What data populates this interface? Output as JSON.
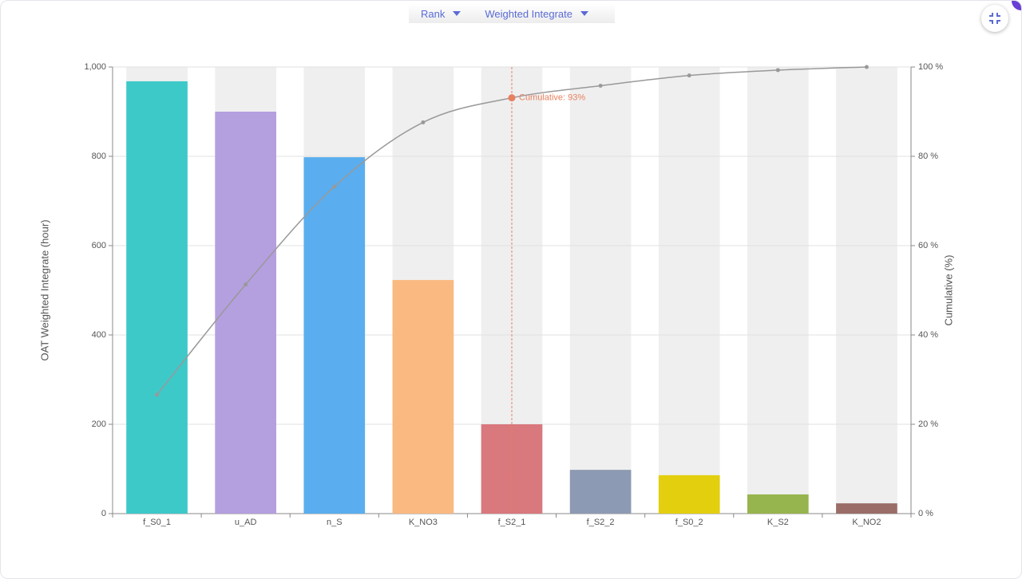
{
  "controls": {
    "sort": "Rank",
    "metric": "Weighted Integrate"
  },
  "chart_data": {
    "type": "bar",
    "categories": [
      "f_S0_1",
      "u_AD",
      "n_S",
      "K_NO3",
      "f_S2_1",
      "f_S2_2",
      "f_S0_2",
      "K_S2",
      "K_NO2"
    ],
    "series": [
      {
        "type": "bar",
        "values": [
          968,
          900,
          798,
          523,
          200,
          98,
          86,
          43,
          23
        ],
        "colors": [
          "#3ec9c9",
          "#b49fdf",
          "#5aaeef",
          "#f9b980",
          "#d9787d",
          "#8d9ab3",
          "#e3cf0e",
          "#97b54e",
          "#9a6d68"
        ]
      },
      {
        "type": "line",
        "axis": "y2",
        "color": "#999999",
        "values": [
          26.6,
          51.3,
          73.2,
          87.6,
          93.1,
          95.8,
          98.1,
          99.3,
          100
        ]
      }
    ],
    "ylabel": "OAT Weighted Integrate (hour)",
    "y2label": "Cumulative (%)",
    "ylim": [
      0,
      1000
    ],
    "yticks": [
      0,
      200,
      400,
      600,
      800,
      {
        "value": 1000,
        "label": "1,000"
      }
    ],
    "y2lim": [
      0,
      100
    ],
    "y2ticks": [
      {
        "value": 0,
        "label": "0 %"
      },
      {
        "value": 20,
        "label": "20 %"
      },
      {
        "value": 40,
        "label": "40 %"
      },
      {
        "value": 60,
        "label": "60 %"
      },
      {
        "value": 80,
        "label": "80 %"
      },
      {
        "value": 100,
        "label": "100 %"
      }
    ],
    "grid": true,
    "band_color": "#efefef",
    "annotation": {
      "text": "Cumulative: 93%",
      "category": "f_S2_1",
      "color": "#e8805f"
    }
  }
}
